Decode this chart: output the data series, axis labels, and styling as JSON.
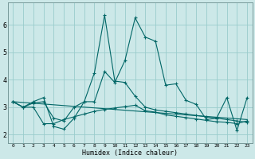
{
  "xlabel": "Humidex (Indice chaleur)",
  "background_color": "#cce8e8",
  "grid_color": "#99cccc",
  "line_color": "#006666",
  "xlim": [
    -0.5,
    23.5
  ],
  "ylim": [
    1.7,
    6.8
  ],
  "ytick_vals": [
    2,
    3,
    4,
    5,
    6
  ],
  "line1_x": [
    0,
    1,
    2,
    3,
    4,
    5,
    6,
    7,
    8,
    9,
    10,
    11,
    12,
    13,
    14,
    15,
    16,
    17,
    18,
    19,
    20,
    21,
    22,
    23
  ],
  "line1_y": [
    3.2,
    3.0,
    3.2,
    3.35,
    2.3,
    2.2,
    2.6,
    3.2,
    3.2,
    4.3,
    3.9,
    4.7,
    6.25,
    5.55,
    5.4,
    3.8,
    3.85,
    3.25,
    3.1,
    2.55,
    2.6,
    3.35,
    2.15,
    3.35
  ],
  "line2_x": [
    0,
    1,
    2,
    3,
    4,
    5,
    6,
    7,
    8,
    9,
    10,
    11,
    12,
    13,
    14,
    15,
    16,
    17,
    18,
    19,
    20,
    21,
    22,
    23
  ],
  "line2_y": [
    3.2,
    3.0,
    3.15,
    3.2,
    2.6,
    2.5,
    3.0,
    3.2,
    4.25,
    6.35,
    3.95,
    3.9,
    3.4,
    3.0,
    2.9,
    2.85,
    2.8,
    2.75,
    2.7,
    2.65,
    2.6,
    2.55,
    2.5,
    2.45
  ],
  "line3_x": [
    0,
    1,
    2,
    3,
    4,
    5,
    6,
    7,
    8,
    9,
    10,
    11,
    12,
    13,
    14,
    15,
    16,
    17,
    18,
    19,
    20,
    21,
    22,
    23
  ],
  "line3_y": [
    3.2,
    3.0,
    3.0,
    2.4,
    2.4,
    2.55,
    2.65,
    2.75,
    2.85,
    2.92,
    2.97,
    3.02,
    3.07,
    2.87,
    2.82,
    2.72,
    2.67,
    2.62,
    2.57,
    2.52,
    2.47,
    2.45,
    2.4,
    2.5
  ],
  "line4_x": [
    0,
    23
  ],
  "line4_y": [
    3.2,
    2.55
  ]
}
